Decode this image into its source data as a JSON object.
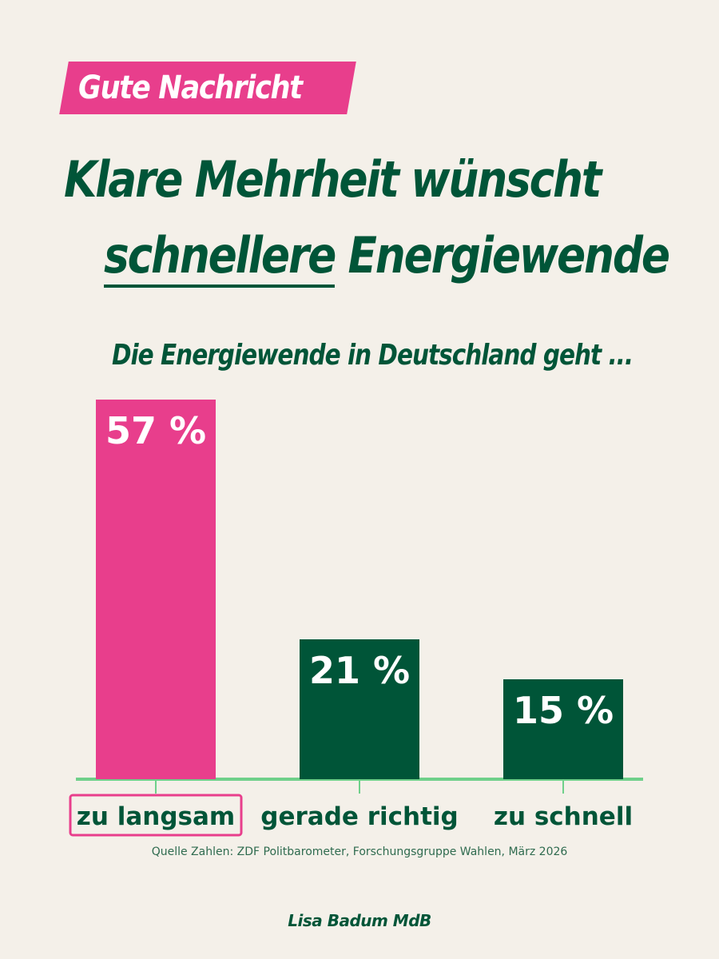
{
  "badge": {
    "label": "Gute Nachricht"
  },
  "headline": {
    "line1": "Klare Mehrheit wünscht",
    "highlight": "schnellere",
    "line2_rest": " Energiewende"
  },
  "source": "Quelle Zahlen: ZDF Politbarometer, Forschungsgruppe Wahlen, März 2026",
  "author": "Lisa Badum MdB",
  "colors": {
    "background": "#f4f0e9",
    "pink": "#e83e8c",
    "dark_green": "#005538",
    "light_green": "#6fd08a"
  },
  "chart_data": {
    "type": "bar",
    "title": "Die Energiewende in Deutschland geht ...",
    "categories": [
      "zu langsam",
      "gerade richtig",
      "zu schnell"
    ],
    "values": [
      57,
      21,
      15
    ],
    "value_labels": [
      "57 %",
      "21 %",
      "15 %"
    ],
    "unit": "%",
    "highlight_category": "zu langsam",
    "ylim": [
      0,
      57
    ],
    "grid": false
  }
}
